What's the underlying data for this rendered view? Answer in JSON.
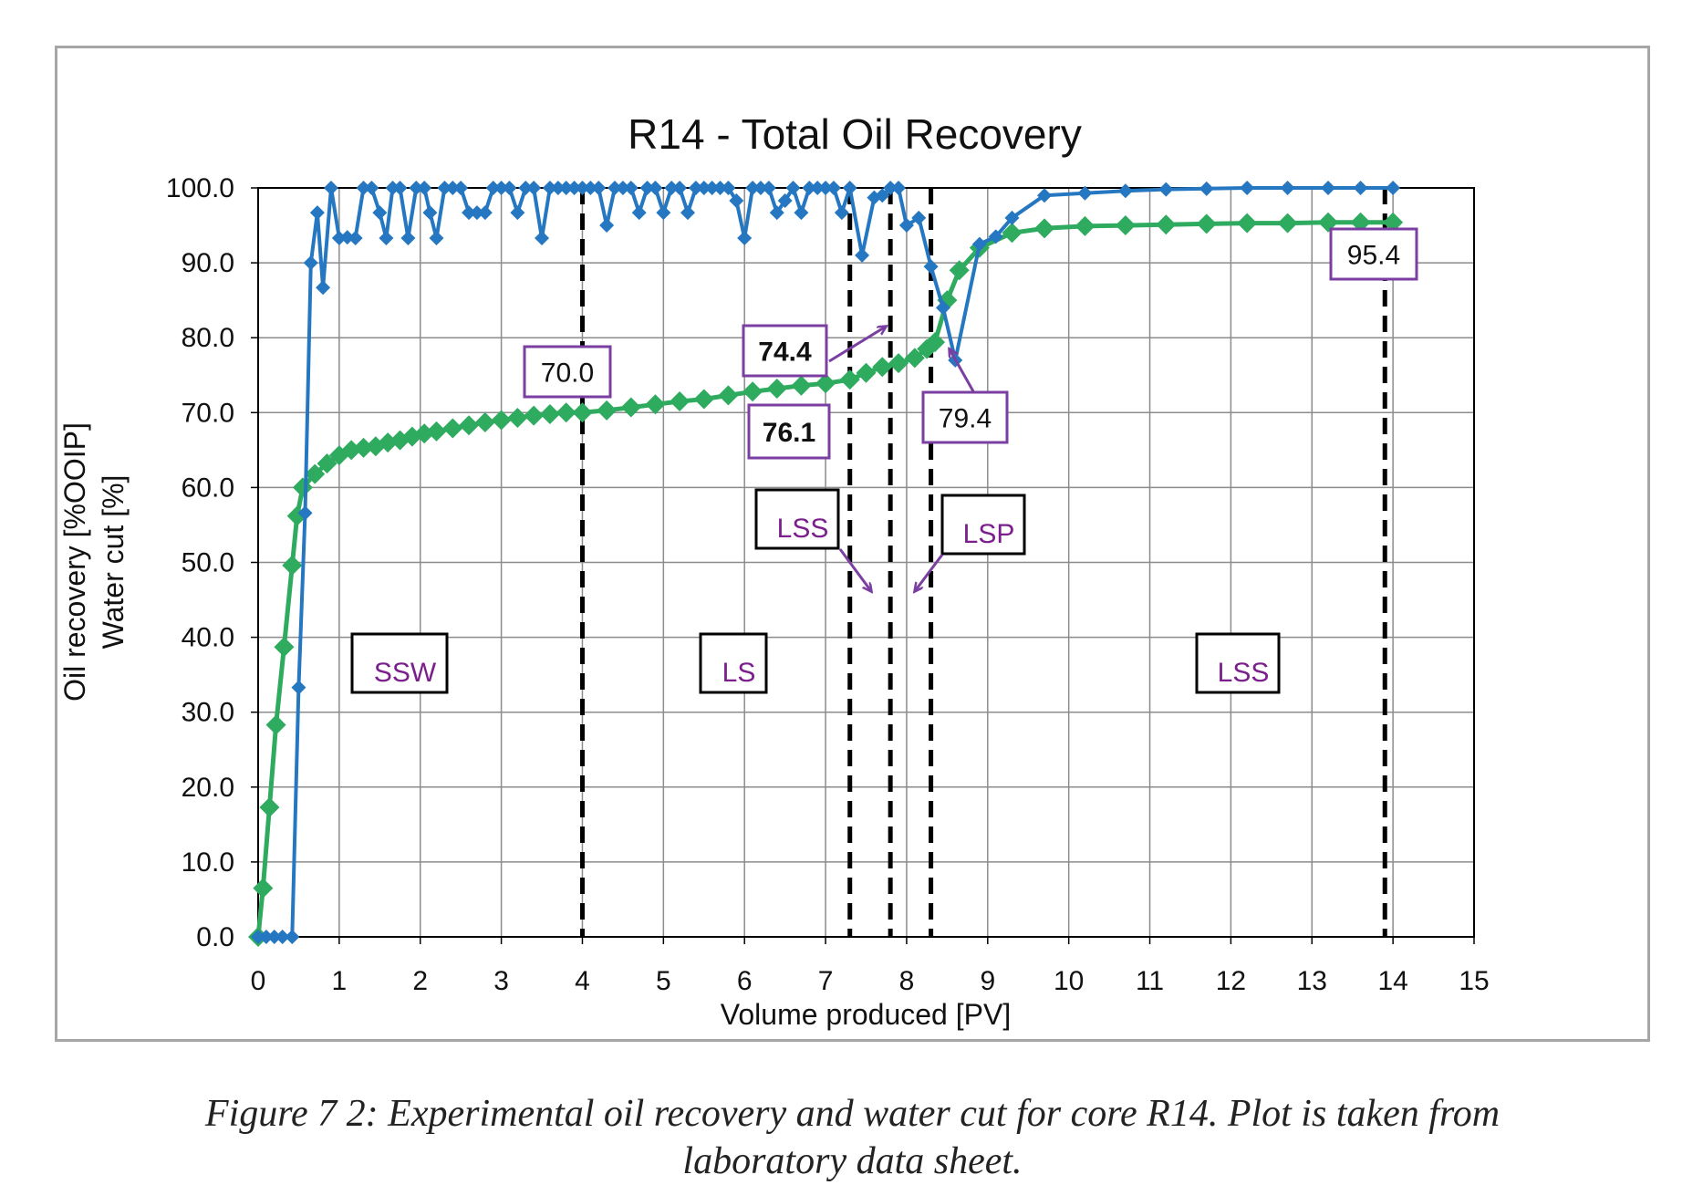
{
  "chart_data": {
    "type": "line",
    "title": "R14 - Total Oil Recovery",
    "xlabel": "Volume produced [PV]",
    "ylabel_lines": [
      "Oil recovery [%OOIP]",
      "Water cut [%]"
    ],
    "xlim": [
      0,
      15
    ],
    "ylim": [
      0,
      100
    ],
    "x_ticks": [
      "0",
      "1",
      "2",
      "3",
      "4",
      "5",
      "6",
      "7",
      "8",
      "9",
      "10",
      "11",
      "12",
      "13",
      "14",
      "15"
    ],
    "y_ticks": [
      "0.0",
      "10.0",
      "20.0",
      "30.0",
      "40.0",
      "50.0",
      "60.0",
      "70.0",
      "80.0",
      "90.0",
      "100.0"
    ],
    "grid": true,
    "series": [
      {
        "color": "#2eab5e",
        "marker": "diamond",
        "points": [
          [
            0,
            0
          ],
          [
            0.06,
            6.5
          ],
          [
            0.14,
            17.3
          ],
          [
            0.22,
            28.3
          ],
          [
            0.32,
            38.7
          ],
          [
            0.42,
            49.6
          ],
          [
            0.48,
            56.2
          ],
          [
            0.55,
            60.0
          ],
          [
            0.7,
            61.8
          ],
          [
            0.85,
            63.2
          ],
          [
            1.0,
            64.3
          ],
          [
            1.15,
            65.0
          ],
          [
            1.3,
            65.3
          ],
          [
            1.45,
            65.5
          ],
          [
            1.6,
            66.0
          ],
          [
            1.75,
            66.3
          ],
          [
            1.9,
            66.8
          ],
          [
            2.05,
            67.2
          ],
          [
            2.2,
            67.5
          ],
          [
            2.4,
            67.9
          ],
          [
            2.6,
            68.3
          ],
          [
            2.8,
            68.7
          ],
          [
            3.0,
            69.0
          ],
          [
            3.2,
            69.3
          ],
          [
            3.4,
            69.6
          ],
          [
            3.6,
            69.8
          ],
          [
            3.8,
            70.0
          ],
          [
            4.0,
            70.0
          ],
          [
            4.3,
            70.3
          ],
          [
            4.6,
            70.7
          ],
          [
            4.9,
            71.1
          ],
          [
            5.2,
            71.5
          ],
          [
            5.5,
            71.8
          ],
          [
            5.8,
            72.3
          ],
          [
            6.1,
            72.8
          ],
          [
            6.4,
            73.2
          ],
          [
            6.7,
            73.6
          ],
          [
            7.0,
            73.9
          ],
          [
            7.3,
            74.4
          ],
          [
            7.5,
            75.3
          ],
          [
            7.7,
            76.1
          ],
          [
            7.9,
            76.6
          ],
          [
            8.1,
            77.3
          ],
          [
            8.25,
            78.5
          ],
          [
            8.35,
            79.4
          ],
          [
            8.5,
            85.0
          ],
          [
            8.65,
            89.0
          ],
          [
            8.9,
            92.0
          ],
          [
            9.3,
            94.0
          ],
          [
            9.7,
            94.6
          ],
          [
            10.2,
            94.9
          ],
          [
            10.7,
            95.0
          ],
          [
            11.2,
            95.1
          ],
          [
            11.7,
            95.2
          ],
          [
            12.2,
            95.3
          ],
          [
            12.7,
            95.3
          ],
          [
            13.2,
            95.4
          ],
          [
            13.6,
            95.4
          ],
          [
            14.0,
            95.4
          ]
        ]
      },
      {
        "color": "#2477c0",
        "marker": "diamond",
        "points": [
          [
            0,
            0
          ],
          [
            0.1,
            0
          ],
          [
            0.2,
            0
          ],
          [
            0.3,
            0
          ],
          [
            0.42,
            0
          ],
          [
            0.5,
            33.3
          ],
          [
            0.58,
            56.6
          ],
          [
            0.65,
            90.0
          ],
          [
            0.73,
            96.7
          ],
          [
            0.8,
            86.7
          ],
          [
            0.9,
            100
          ],
          [
            1.0,
            93.3
          ],
          [
            1.1,
            93.4
          ],
          [
            1.2,
            93.3
          ],
          [
            1.3,
            100
          ],
          [
            1.4,
            100
          ],
          [
            1.5,
            96.7
          ],
          [
            1.58,
            93.3
          ],
          [
            1.66,
            100
          ],
          [
            1.75,
            100
          ],
          [
            1.85,
            93.3
          ],
          [
            1.95,
            100
          ],
          [
            2.05,
            100
          ],
          [
            2.12,
            96.7
          ],
          [
            2.2,
            93.3
          ],
          [
            2.3,
            100
          ],
          [
            2.4,
            100
          ],
          [
            2.5,
            100
          ],
          [
            2.6,
            96.7
          ],
          [
            2.7,
            96.7
          ],
          [
            2.8,
            96.7
          ],
          [
            2.9,
            100
          ],
          [
            3.0,
            100
          ],
          [
            3.1,
            100
          ],
          [
            3.2,
            96.7
          ],
          [
            3.3,
            100
          ],
          [
            3.4,
            100
          ],
          [
            3.5,
            93.3
          ],
          [
            3.6,
            100
          ],
          [
            3.7,
            100
          ],
          [
            3.8,
            100
          ],
          [
            3.9,
            100
          ],
          [
            4.0,
            100
          ],
          [
            4.1,
            100
          ],
          [
            4.2,
            100
          ],
          [
            4.3,
            95.0
          ],
          [
            4.4,
            100
          ],
          [
            4.5,
            100
          ],
          [
            4.6,
            100
          ],
          [
            4.7,
            96.7
          ],
          [
            4.8,
            100
          ],
          [
            4.9,
            100
          ],
          [
            5.0,
            96.7
          ],
          [
            5.1,
            100
          ],
          [
            5.2,
            100
          ],
          [
            5.3,
            96.7
          ],
          [
            5.4,
            100
          ],
          [
            5.5,
            100
          ],
          [
            5.6,
            100
          ],
          [
            5.7,
            100
          ],
          [
            5.8,
            100
          ],
          [
            5.9,
            98.3
          ],
          [
            6.0,
            93.3
          ],
          [
            6.1,
            100
          ],
          [
            6.2,
            100
          ],
          [
            6.3,
            100
          ],
          [
            6.4,
            96.7
          ],
          [
            6.5,
            98.3
          ],
          [
            6.6,
            100
          ],
          [
            6.7,
            96.7
          ],
          [
            6.8,
            100
          ],
          [
            6.9,
            100
          ],
          [
            7.0,
            100
          ],
          [
            7.1,
            100
          ],
          [
            7.2,
            96.7
          ],
          [
            7.3,
            100
          ],
          [
            7.45,
            91.0
          ],
          [
            7.6,
            98.7
          ],
          [
            7.7,
            99.0
          ],
          [
            7.8,
            100
          ],
          [
            7.9,
            100
          ],
          [
            8.0,
            95.0
          ],
          [
            8.15,
            96.0
          ],
          [
            8.3,
            89.5
          ],
          [
            8.45,
            84.0
          ],
          [
            8.6,
            77.0
          ],
          [
            8.9,
            92.5
          ],
          [
            9.1,
            93.5
          ],
          [
            9.3,
            96.0
          ],
          [
            9.7,
            99.0
          ],
          [
            10.2,
            99.3
          ],
          [
            10.7,
            99.6
          ],
          [
            11.2,
            99.8
          ],
          [
            11.7,
            99.9
          ],
          [
            12.2,
            100
          ],
          [
            12.7,
            100
          ],
          [
            13.2,
            100
          ],
          [
            13.6,
            100
          ],
          [
            14.0,
            100
          ]
        ]
      }
    ],
    "vlines": [
      4.0,
      7.3,
      7.8,
      8.3,
      13.9
    ],
    "annotations": {
      "values": [
        "70.0",
        "74.4",
        "76.1",
        "79.4",
        "95.4"
      ],
      "regions": [
        "SSW",
        "LS",
        "LSS",
        "LSP",
        "LSS"
      ]
    },
    "colors": {
      "recovery": "#2eab5e",
      "water_cut": "#2477c0",
      "annotation_border": "#7a3fa0",
      "region_text": "#7a1f8c",
      "arrow": "#7a3fa0"
    }
  },
  "caption": {
    "line1": "Figure 7 2: Experimental oil recovery and water cut for core R14. Plot is taken from",
    "line2": "laboratory data sheet."
  }
}
